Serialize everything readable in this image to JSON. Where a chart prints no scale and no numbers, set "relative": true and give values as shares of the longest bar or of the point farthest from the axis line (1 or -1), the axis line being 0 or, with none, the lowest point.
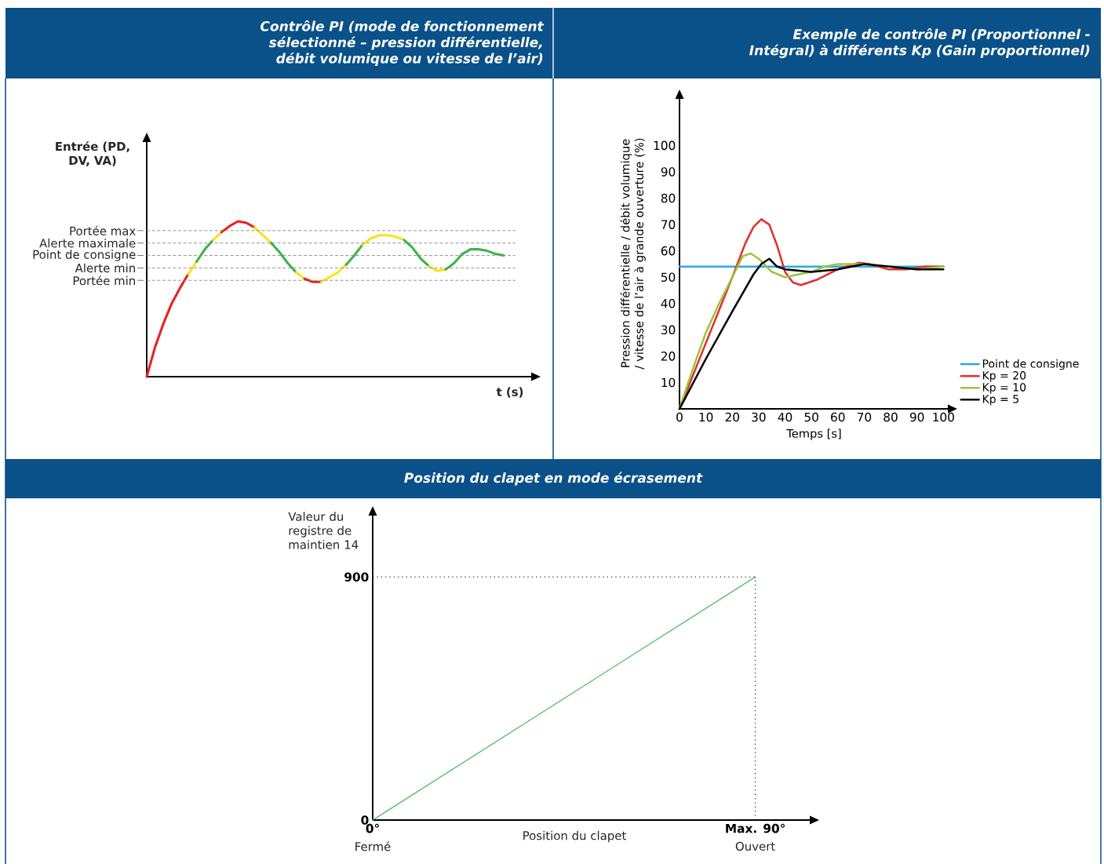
{
  "chart_data": [
    {
      "type": "line",
      "relative": true,
      "title": "Contrôle PI (mode de fonctionnement sélectionné – pression différentielle, débit volumique ou vitesse de l’air)",
      "ylabel": "Entrée (PD, DV, VA)",
      "xlabel": "t (s)",
      "categories": [
        null,
        null,
        null,
        null,
        null,
        null,
        null,
        null,
        null,
        null,
        null,
        null,
        null,
        null,
        null,
        null,
        null,
        null,
        null,
        null,
        null,
        null,
        null,
        null,
        null,
        null,
        null,
        null,
        null,
        null,
        null,
        null,
        null,
        null,
        null,
        null,
        null,
        null,
        null,
        null,
        null,
        null,
        null,
        null
      ],
      "series": [
        {
          "color": "#e52421",
          "values": [
            0,
            0.19,
            0.34,
            0.47,
            0.57,
            0.66,
            null,
            null,
            null,
            null,
            null,
            null,
            null,
            null,
            null,
            null,
            null,
            null,
            null,
            null,
            null,
            null,
            null,
            null,
            null,
            null,
            null,
            null,
            null,
            null,
            null,
            null,
            null,
            null,
            null,
            null,
            null,
            null,
            null,
            null,
            null,
            null,
            null,
            null
          ]
        },
        {
          "color": "#f5e51b",
          "values": [
            null,
            null,
            null,
            null,
            null,
            0.66,
            0.74,
            null,
            null,
            null,
            null,
            null,
            null,
            null,
            null,
            null,
            null,
            null,
            null,
            null,
            null,
            null,
            null,
            null,
            null,
            null,
            null,
            null,
            null,
            null,
            null,
            null,
            null,
            null,
            null,
            null,
            null,
            null,
            null,
            null,
            null,
            null,
            null,
            null
          ]
        },
        {
          "color": "#3bb44a",
          "values": [
            null,
            null,
            null,
            null,
            null,
            null,
            0.74,
            0.82,
            0.88,
            null,
            null,
            null,
            null,
            null,
            null,
            null,
            null,
            null,
            null,
            null,
            null,
            null,
            null,
            null,
            null,
            null,
            null,
            null,
            null,
            null,
            null,
            null,
            null,
            null,
            null,
            null,
            null,
            null,
            null,
            null,
            null,
            null,
            null,
            null
          ]
        },
        {
          "color": "#f5e51b",
          "values": [
            null,
            null,
            null,
            null,
            null,
            null,
            null,
            null,
            0.88,
            0.93,
            null,
            null,
            null,
            null,
            null,
            null,
            null,
            null,
            null,
            null,
            null,
            null,
            null,
            null,
            null,
            null,
            null,
            null,
            null,
            null,
            null,
            null,
            null,
            null,
            null,
            null,
            null,
            null,
            null,
            null,
            null,
            null,
            null,
            null
          ]
        },
        {
          "color": "#e52421",
          "values": [
            null,
            null,
            null,
            null,
            null,
            null,
            null,
            null,
            null,
            0.93,
            0.97,
            1,
            0.99,
            0.96,
            null,
            null,
            null,
            null,
            null,
            null,
            null,
            null,
            null,
            null,
            null,
            null,
            null,
            null,
            null,
            null,
            null,
            null,
            null,
            null,
            null,
            null,
            null,
            null,
            null,
            null,
            null,
            null,
            null,
            null
          ]
        },
        {
          "color": "#f5e51b",
          "values": [
            null,
            null,
            null,
            null,
            null,
            null,
            null,
            null,
            null,
            null,
            null,
            null,
            null,
            0.96,
            0.91,
            0.86,
            null,
            null,
            null,
            null,
            null,
            null,
            null,
            null,
            null,
            null,
            null,
            null,
            null,
            null,
            null,
            null,
            null,
            null,
            null,
            null,
            null,
            null,
            null,
            null,
            null,
            null,
            null,
            null
          ]
        },
        {
          "color": "#3bb44a",
          "values": [
            null,
            null,
            null,
            null,
            null,
            null,
            null,
            null,
            null,
            null,
            null,
            null,
            null,
            null,
            null,
            0.86,
            0.8,
            0.73,
            0.67,
            null,
            null,
            null,
            null,
            null,
            null,
            null,
            null,
            null,
            null,
            null,
            null,
            null,
            null,
            null,
            null,
            null,
            null,
            null,
            null,
            null,
            null,
            null,
            null,
            null
          ]
        },
        {
          "color": "#f5e51b",
          "values": [
            null,
            null,
            null,
            null,
            null,
            null,
            null,
            null,
            null,
            null,
            null,
            null,
            null,
            null,
            null,
            null,
            null,
            null,
            0.67,
            0.63,
            null,
            null,
            null,
            null,
            null,
            null,
            null,
            null,
            null,
            null,
            null,
            null,
            null,
            null,
            null,
            null,
            null,
            null,
            null,
            null,
            null,
            null,
            null,
            null
          ]
        },
        {
          "color": "#e52421",
          "values": [
            null,
            null,
            null,
            null,
            null,
            null,
            null,
            null,
            null,
            null,
            null,
            null,
            null,
            null,
            null,
            null,
            null,
            null,
            null,
            0.63,
            0.61,
            0.61,
            null,
            null,
            null,
            null,
            null,
            null,
            null,
            null,
            null,
            null,
            null,
            null,
            null,
            null,
            null,
            null,
            null,
            null,
            null,
            null,
            null,
            null
          ]
        },
        {
          "color": "#f5e51b",
          "values": [
            null,
            null,
            null,
            null,
            null,
            null,
            null,
            null,
            null,
            null,
            null,
            null,
            null,
            null,
            null,
            null,
            null,
            null,
            null,
            null,
            null,
            0.61,
            0.64,
            0.67,
            0.72,
            null,
            null,
            null,
            null,
            null,
            null,
            null,
            null,
            null,
            null,
            null,
            null,
            null,
            null,
            null,
            null,
            null,
            null,
            null
          ]
        },
        {
          "color": "#3bb44a",
          "values": [
            null,
            null,
            null,
            null,
            null,
            null,
            null,
            null,
            null,
            null,
            null,
            null,
            null,
            null,
            null,
            null,
            null,
            null,
            null,
            null,
            null,
            null,
            null,
            null,
            0.72,
            0.78,
            0.85,
            null,
            null,
            null,
            null,
            null,
            null,
            null,
            null,
            null,
            null,
            null,
            null,
            null,
            null,
            null,
            null,
            null
          ]
        },
        {
          "color": "#f5e51b",
          "values": [
            null,
            null,
            null,
            null,
            null,
            null,
            null,
            null,
            null,
            null,
            null,
            null,
            null,
            null,
            null,
            null,
            null,
            null,
            null,
            null,
            null,
            null,
            null,
            null,
            null,
            null,
            0.85,
            0.89,
            0.91,
            0.91,
            0.9,
            0.88,
            null,
            null,
            null,
            null,
            null,
            null,
            null,
            null,
            null,
            null,
            null,
            null
          ]
        },
        {
          "color": "#3bb44a",
          "values": [
            null,
            null,
            null,
            null,
            null,
            null,
            null,
            null,
            null,
            null,
            null,
            null,
            null,
            null,
            null,
            null,
            null,
            null,
            null,
            null,
            null,
            null,
            null,
            null,
            null,
            null,
            null,
            null,
            null,
            null,
            null,
            0.88,
            0.83,
            0.76,
            0.71,
            null,
            null,
            null,
            null,
            null,
            null,
            null,
            null,
            null
          ]
        },
        {
          "color": "#f5e51b",
          "values": [
            null,
            null,
            null,
            null,
            null,
            null,
            null,
            null,
            null,
            null,
            null,
            null,
            null,
            null,
            null,
            null,
            null,
            null,
            null,
            null,
            null,
            null,
            null,
            null,
            null,
            null,
            null,
            null,
            null,
            null,
            null,
            null,
            null,
            null,
            0.71,
            0.68,
            0.69,
            null,
            null,
            null,
            null,
            null,
            null,
            null
          ]
        },
        {
          "color": "#3bb44a",
          "values": [
            null,
            null,
            null,
            null,
            null,
            null,
            null,
            null,
            null,
            null,
            null,
            null,
            null,
            null,
            null,
            null,
            null,
            null,
            null,
            null,
            null,
            null,
            null,
            null,
            null,
            null,
            null,
            null,
            null,
            null,
            null,
            null,
            null,
            null,
            null,
            null,
            0.69,
            0.73,
            0.79,
            0.82,
            0.82,
            0.81,
            0.79,
            0.78
          ]
        }
      ],
      "ref_lines": [
        {
          "axis": "y",
          "value": 0.94,
          "label": "Portée max",
          "color": "#8c8c8c",
          "line_style": "dashed"
        },
        {
          "axis": "y",
          "value": 0.86,
          "label": "Alerte maximale",
          "color": "#8c8c8c",
          "line_style": "dashed"
        },
        {
          "axis": "y",
          "value": 0.78,
          "label": "Point de consigne",
          "color": "#8c8c8c",
          "line_style": "dashed"
        },
        {
          "axis": "y",
          "value": 0.7,
          "label": "Alerte min",
          "color": "#8c8c8c",
          "line_style": "dashed"
        },
        {
          "axis": "y",
          "value": 0.62,
          "label": "Portée min",
          "color": "#8c8c8c",
          "line_style": "dashed"
        }
      ]
    },
    {
      "type": "line",
      "title": "Exemple de contrôle PI (Proportionnel - Intégral) à différents Kp (Gain proportionnel)",
      "xlabel": "Temps [s]",
      "ylabel": "Pression différentielle / débit volumique / vitesse de l’air à grande ouverture (%)",
      "xlim": [
        0,
        102
      ],
      "ylim": [
        0,
        118
      ],
      "xticks": [
        0,
        10,
        20,
        30,
        40,
        50,
        60,
        70,
        80,
        90,
        100
      ],
      "yticks": [
        10,
        20,
        30,
        40,
        50,
        60,
        70,
        80,
        90,
        100
      ],
      "legend": "right",
      "series": [
        {
          "name": "Point de consigne",
          "color": "#29a9e0",
          "x": [
            0,
            100
          ],
          "values": [
            54,
            54
          ]
        },
        {
          "name": "Kp = 20",
          "color": "#e52d2d",
          "x": [
            0,
            10,
            20,
            25,
            28,
            31,
            34,
            37,
            40,
            43,
            46,
            52,
            60,
            68,
            72,
            79,
            86,
            93,
            100
          ],
          "values": [
            0,
            25,
            50,
            63,
            69,
            72,
            70,
            62,
            52,
            48,
            47,
            49,
            53,
            55.5,
            55,
            53,
            53,
            54,
            54
          ]
        },
        {
          "name": "Kp = 10",
          "color": "#9bc53d",
          "x": [
            0,
            5,
            10,
            15,
            20,
            24,
            27,
            30,
            35,
            40,
            45,
            50,
            55,
            60,
            65,
            70,
            80,
            90,
            100
          ],
          "values": [
            0,
            15,
            29,
            40,
            50,
            58,
            59,
            57,
            52,
            50,
            51,
            52,
            54,
            55,
            55,
            55,
            54,
            53,
            54
          ]
        },
        {
          "name": "Kp = 5",
          "color": "#000000",
          "x": [
            0,
            10,
            20,
            28,
            31,
            34,
            37,
            40,
            50,
            60,
            70,
            80,
            90,
            100
          ],
          "values": [
            0,
            19,
            37,
            51,
            55,
            57,
            54,
            53,
            52,
            53,
            55,
            54,
            53,
            53
          ]
        }
      ]
    },
    {
      "type": "line",
      "title": "Position du clapet en mode écrasement",
      "xlabel": "Position du clapet",
      "ylabel": "Valeur du registre de maintien 14",
      "xlim": [
        0,
        103
      ],
      "ylim": [
        0,
        1130
      ],
      "xticks": [
        {
          "value": 0,
          "label": "0°"
        },
        {
          "value": 90,
          "label": "Max. 90°"
        }
      ],
      "yticks": [
        0,
        900
      ],
      "series": [
        {
          "color": "#3db54a",
          "x": [
            0,
            90
          ],
          "values": [
            0,
            900
          ]
        }
      ],
      "ref_lines": [
        {
          "axis": "y",
          "value": 900,
          "color": "#000000",
          "line_style": "dotted"
        },
        {
          "axis": "x",
          "value": 90,
          "color": "#000000",
          "line_style": "dotted"
        }
      ],
      "annotations": [
        {
          "text": "Fermé",
          "x": 0,
          "y": 0
        },
        {
          "text": "Ouvert",
          "x": 90,
          "y": 0
        }
      ]
    }
  ]
}
